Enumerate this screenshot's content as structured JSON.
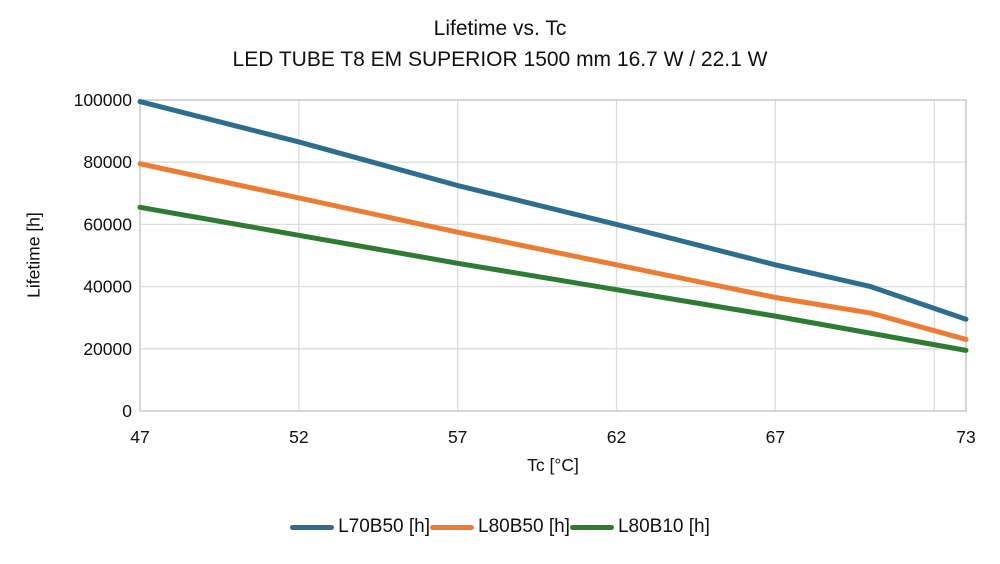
{
  "title": "Lifetime vs. Tc",
  "subtitle": "LED TUBE T8 EM SUPERIOR 1500 mm 16.7 W / 22.1 W",
  "chart_data": {
    "type": "line",
    "title": "Lifetime vs. Tc",
    "subtitle": "LED TUBE T8 EM SUPERIOR 1500 mm 16.7 W / 22.1 W",
    "xlabel": "Tc [°C]",
    "ylabel": "Lifetime [h]",
    "xlim": [
      47,
      73
    ],
    "ylim": [
      0,
      100000
    ],
    "x_ticks": [
      47,
      52,
      57,
      62,
      67,
      73
    ],
    "x_gridlines": [
      47,
      52,
      57,
      62,
      67,
      72,
      73
    ],
    "y_ticks": [
      0,
      20000,
      40000,
      60000,
      80000,
      100000
    ],
    "grid": true,
    "legend_position": "bottom",
    "x": [
      47,
      52,
      57,
      62,
      67,
      70,
      73
    ],
    "series": [
      {
        "name": "L70B50 [h]",
        "color": "#2d6d8e",
        "values": [
          99500,
          86500,
          72500,
          60000,
          47000,
          40000,
          29500
        ]
      },
      {
        "name": "L80B50 [h]",
        "color": "#ec7c33",
        "values": [
          79500,
          68500,
          57500,
          47000,
          36500,
          31500,
          23000
        ]
      },
      {
        "name": "L80B10 [h]",
        "color": "#2e7b33",
        "values": [
          65500,
          56500,
          47500,
          39000,
          30500,
          25000,
          19500
        ]
      }
    ]
  },
  "colors": {
    "grid": "#dcdcdc",
    "spine": "#c9c9c9",
    "text": "#111111",
    "background": "#ffffff"
  }
}
